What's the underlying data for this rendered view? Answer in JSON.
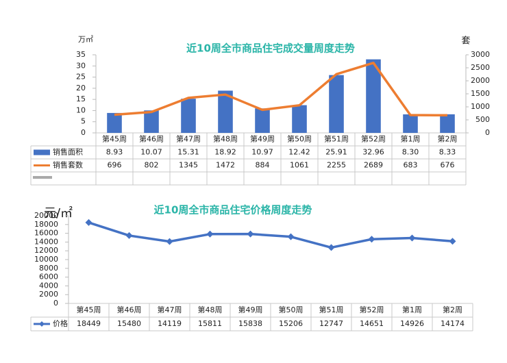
{
  "chart_data": [
    {
      "type": "bar",
      "title": "近10周全市商品住宅成交量周度走势",
      "y_label": "万㎡",
      "y2_label": "套",
      "categories": [
        "第45周",
        "第46周",
        "第47周",
        "第48周",
        "第49周",
        "第50周",
        "第51周",
        "第52周",
        "第1周",
        "第2周"
      ],
      "series": [
        {
          "name": "销售面积",
          "color": "#4472c4",
          "type": "bar",
          "values": [
            8.93,
            10.07,
            15.31,
            18.92,
            10.97,
            12.42,
            25.91,
            32.96,
            8.3,
            8.33
          ],
          "value_labels": [
            "8.93",
            "10.07",
            "15.31",
            "18.92",
            "10.97",
            "12.42",
            "25.91",
            "32.96",
            "8.30",
            "8.33"
          ]
        },
        {
          "name": "销售套数",
          "color": "#ed7d31",
          "type": "line",
          "axis": "y2",
          "values": [
            696,
            802,
            1345,
            1472,
            884,
            1061,
            2255,
            2689,
            683,
            676
          ]
        }
      ],
      "ylim": [
        0,
        35
      ],
      "yticks": [
        0,
        5,
        10,
        15,
        20,
        25,
        30,
        35
      ],
      "y2lim": [
        0,
        3000
      ],
      "y2ticks": [
        0,
        500,
        1000,
        1500,
        2000,
        2500,
        3000
      ]
    },
    {
      "type": "line",
      "title": "近10周全市商品住宅价格周度走势",
      "y_label": "元/㎡",
      "categories": [
        "第45周",
        "第46周",
        "第47周",
        "第48周",
        "第49周",
        "第50周",
        "第51周",
        "第52周",
        "第1周",
        "第2周"
      ],
      "series": [
        {
          "name": "价格",
          "color": "#4472c4",
          "values": [
            18449,
            15480,
            14119,
            15811,
            15838,
            15206,
            12747,
            14651,
            14926,
            14174
          ]
        }
      ],
      "ylim": [
        0,
        20000
      ],
      "yticks": [
        0,
        2000,
        4000,
        6000,
        8000,
        10000,
        12000,
        14000,
        16000,
        18000,
        20000
      ]
    }
  ]
}
